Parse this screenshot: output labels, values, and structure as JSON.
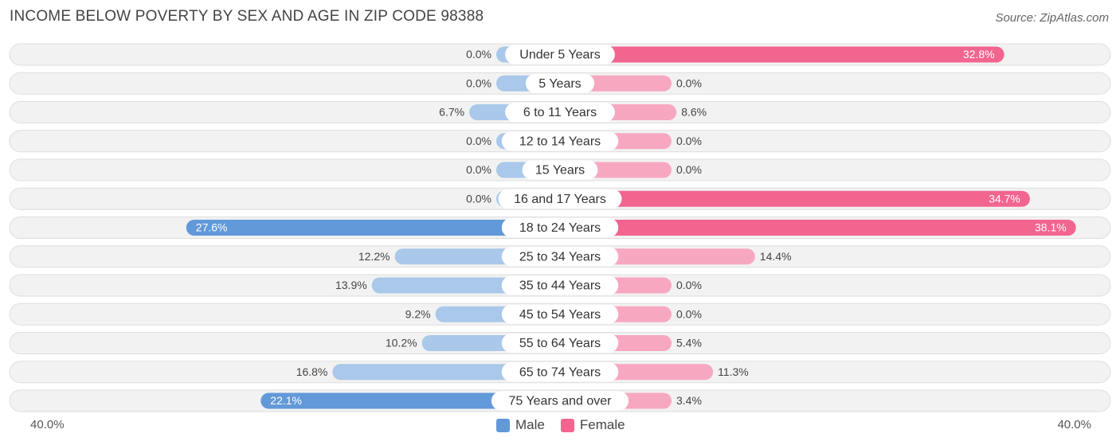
{
  "header": {
    "title": "INCOME BELOW POVERTY BY SEX AND AGE IN ZIP CODE 98388",
    "source": "Source: ZipAtlas.com"
  },
  "legend": {
    "male_label": "Male",
    "female_label": "Female"
  },
  "axis": {
    "left_label": "40.0%",
    "right_label": "40.0%"
  },
  "colors": {
    "male_dark": "#6199d9",
    "male_light": "#a9c8ea",
    "female_dark": "#f2658f",
    "female_light": "#f7a8c0",
    "row_bg": "#f2f2f2",
    "row_border": "#dedede"
  },
  "chart_data": {
    "type": "bar",
    "orientation": "horizontal-diverging",
    "title": "INCOME BELOW POVERTY BY SEX AND AGE IN ZIP CODE 98388",
    "xlim": [
      -40,
      40
    ],
    "categories": [
      "Under 5 Years",
      "5 Years",
      "6 to 11 Years",
      "12 to 14 Years",
      "15 Years",
      "16 and 17 Years",
      "18 to 24 Years",
      "25 to 34 Years",
      "35 to 44 Years",
      "45 to 54 Years",
      "55 to 64 Years",
      "65 to 74 Years",
      "75 Years and over"
    ],
    "series": [
      {
        "name": "Male",
        "values": [
          0.0,
          0.0,
          6.7,
          0.0,
          0.0,
          0.0,
          27.6,
          12.2,
          13.9,
          9.2,
          10.2,
          16.8,
          22.1
        ],
        "labels": [
          "0.0%",
          "0.0%",
          "6.7%",
          "0.0%",
          "0.0%",
          "0.0%",
          "27.6%",
          "12.2%",
          "13.9%",
          "9.2%",
          "10.2%",
          "16.8%",
          "22.1%"
        ]
      },
      {
        "name": "Female",
        "values": [
          32.8,
          0.0,
          8.6,
          0.0,
          0.0,
          34.7,
          38.1,
          14.4,
          0.0,
          0.0,
          5.4,
          11.3,
          3.4
        ],
        "labels": [
          "32.8%",
          "0.0%",
          "8.6%",
          "0.0%",
          "0.0%",
          "34.7%",
          "38.1%",
          "14.4%",
          "0.0%",
          "0.0%",
          "5.4%",
          "11.3%",
          "3.4%"
        ]
      }
    ],
    "legend_position": "bottom-center"
  }
}
